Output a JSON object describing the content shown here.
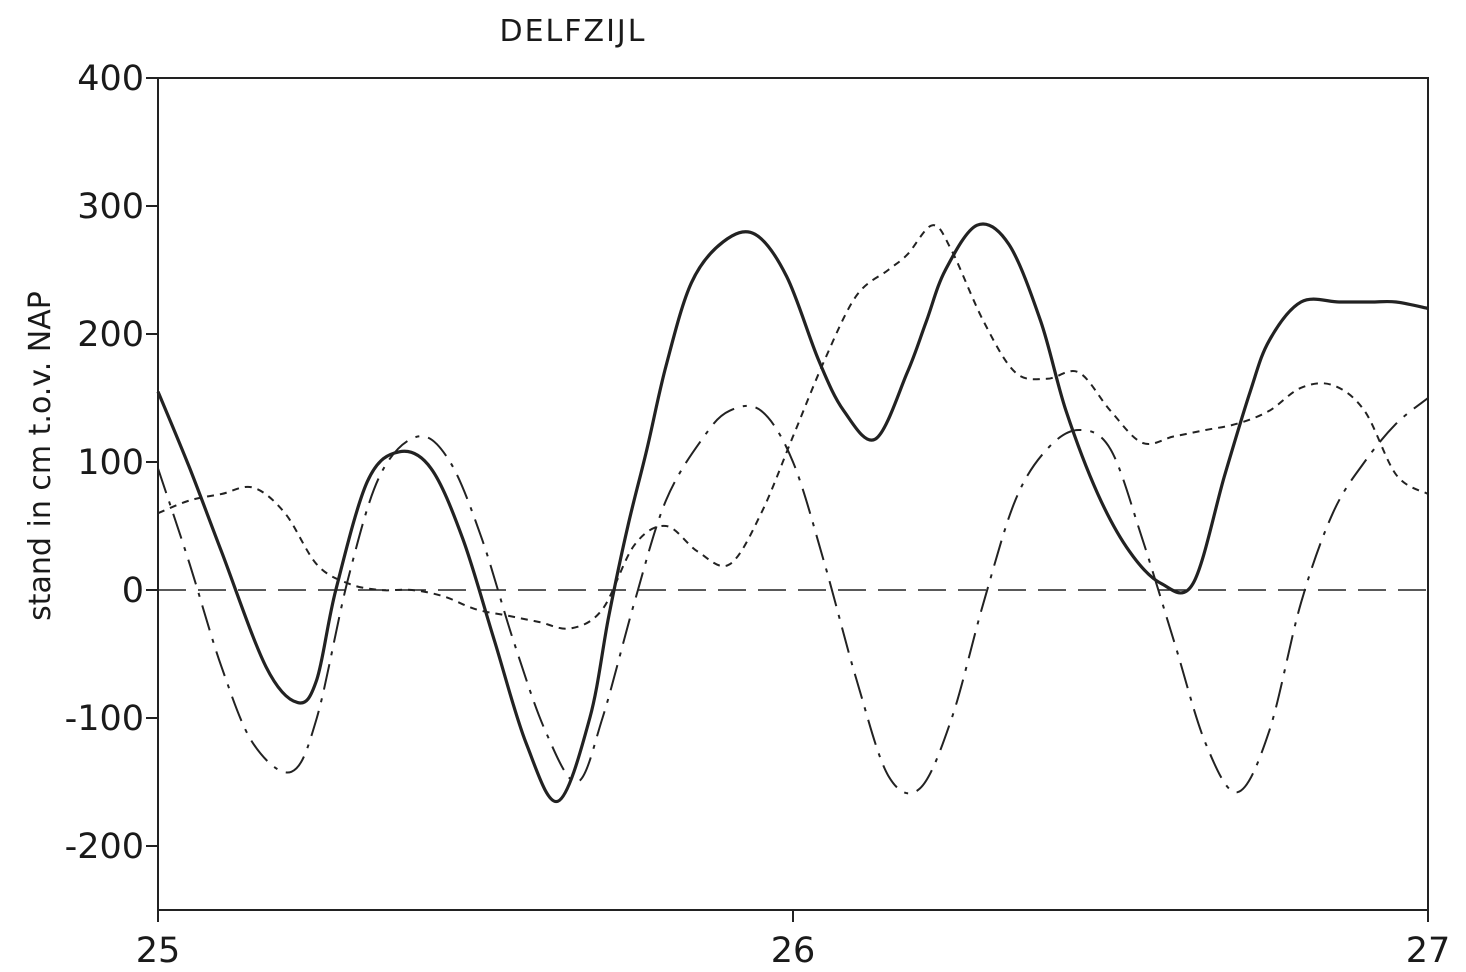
{
  "chart_data": {
    "type": "line",
    "title": "DELFZIJL",
    "ylabel": "stand in cm t.o.v. NAP",
    "xlabel": "",
    "xlim": [
      25,
      27
    ],
    "ylim": [
      -250,
      400
    ],
    "xticks": [
      25,
      26,
      27
    ],
    "xtick_labels": [
      "25",
      "26",
      "27"
    ],
    "yticks": [
      400,
      300,
      200,
      100,
      0,
      -100,
      -200
    ],
    "ytick_labels": [
      "400",
      "300",
      "200",
      "100",
      "0",
      "-100",
      "-200"
    ],
    "grid": false,
    "legend": "none",
    "series": [
      {
        "style": "solid",
        "color": "#222222",
        "x": [
          25.0,
          25.05,
          25.1,
          25.17,
          25.22,
          25.25,
          25.28,
          25.33,
          25.38,
          25.43,
          25.48,
          25.53,
          25.58,
          25.63,
          25.68,
          25.71,
          25.74,
          25.77,
          25.8,
          25.84,
          25.89,
          25.94,
          25.99,
          26.04,
          26.08,
          26.13,
          26.18,
          26.21,
          26.24,
          26.29,
          26.34,
          26.39,
          26.43,
          26.48,
          26.53,
          26.58,
          26.63,
          26.68,
          26.72,
          26.75,
          26.8,
          26.86,
          26.91,
          26.95,
          27.0
        ],
        "y": [
          155,
          95,
          30,
          -60,
          -88,
          -70,
          0,
          85,
          108,
          95,
          40,
          -40,
          -120,
          -165,
          -100,
          -20,
          50,
          110,
          175,
          240,
          272,
          278,
          245,
          180,
          140,
          118,
          170,
          210,
          250,
          285,
          270,
          210,
          140,
          75,
          30,
          5,
          5,
          90,
          155,
          195,
          225,
          225,
          225,
          225,
          220
        ]
      },
      {
        "style": "dash-dot",
        "color": "#222222",
        "x": [
          25.0,
          25.05,
          25.1,
          25.15,
          25.21,
          25.25,
          25.3,
          25.35,
          25.41,
          25.46,
          25.51,
          25.56,
          25.61,
          25.66,
          25.7,
          25.75,
          25.8,
          25.86,
          25.9,
          25.95,
          26.0,
          26.05,
          26.1,
          26.15,
          26.2,
          26.25,
          26.3,
          26.35,
          26.4,
          26.45,
          26.5,
          26.55,
          26.6,
          26.65,
          26.7,
          26.75,
          26.8,
          26.85,
          26.9,
          26.95,
          27.0
        ],
        "y": [
          95,
          20,
          -60,
          -120,
          -142,
          -100,
          10,
          90,
          120,
          100,
          40,
          -40,
          -110,
          -150,
          -100,
          -10,
          70,
          120,
          140,
          140,
          100,
          20,
          -70,
          -145,
          -155,
          -100,
          -10,
          70,
          110,
          125,
          110,
          40,
          -40,
          -120,
          -158,
          -110,
          -10,
          60,
          100,
          130,
          150
        ]
      },
      {
        "style": "dotted",
        "color": "#222222",
        "x": [
          25.0,
          25.05,
          25.1,
          25.15,
          25.2,
          25.25,
          25.3,
          25.35,
          25.4,
          25.45,
          25.5,
          25.55,
          25.6,
          25.65,
          25.7,
          25.75,
          25.8,
          25.85,
          25.9,
          25.95,
          26.0,
          26.05,
          26.1,
          26.15,
          26.18,
          26.22,
          26.25,
          26.3,
          26.35,
          26.4,
          26.45,
          26.5,
          26.55,
          26.6,
          26.65,
          26.7,
          26.75,
          26.8,
          26.85,
          26.9,
          26.95,
          27.0
        ],
        "y": [
          60,
          70,
          75,
          80,
          60,
          20,
          5,
          0,
          0,
          -5,
          -15,
          -20,
          -25,
          -30,
          -15,
          35,
          50,
          30,
          20,
          60,
          120,
          180,
          230,
          250,
          262,
          285,
          265,
          210,
          170,
          165,
          170,
          140,
          115,
          120,
          125,
          130,
          140,
          158,
          160,
          140,
          90,
          75
        ]
      },
      {
        "style": "long-dash",
        "color": "#222222",
        "x": [
          25.0,
          27.0
        ],
        "y": [
          0,
          0
        ]
      }
    ]
  }
}
